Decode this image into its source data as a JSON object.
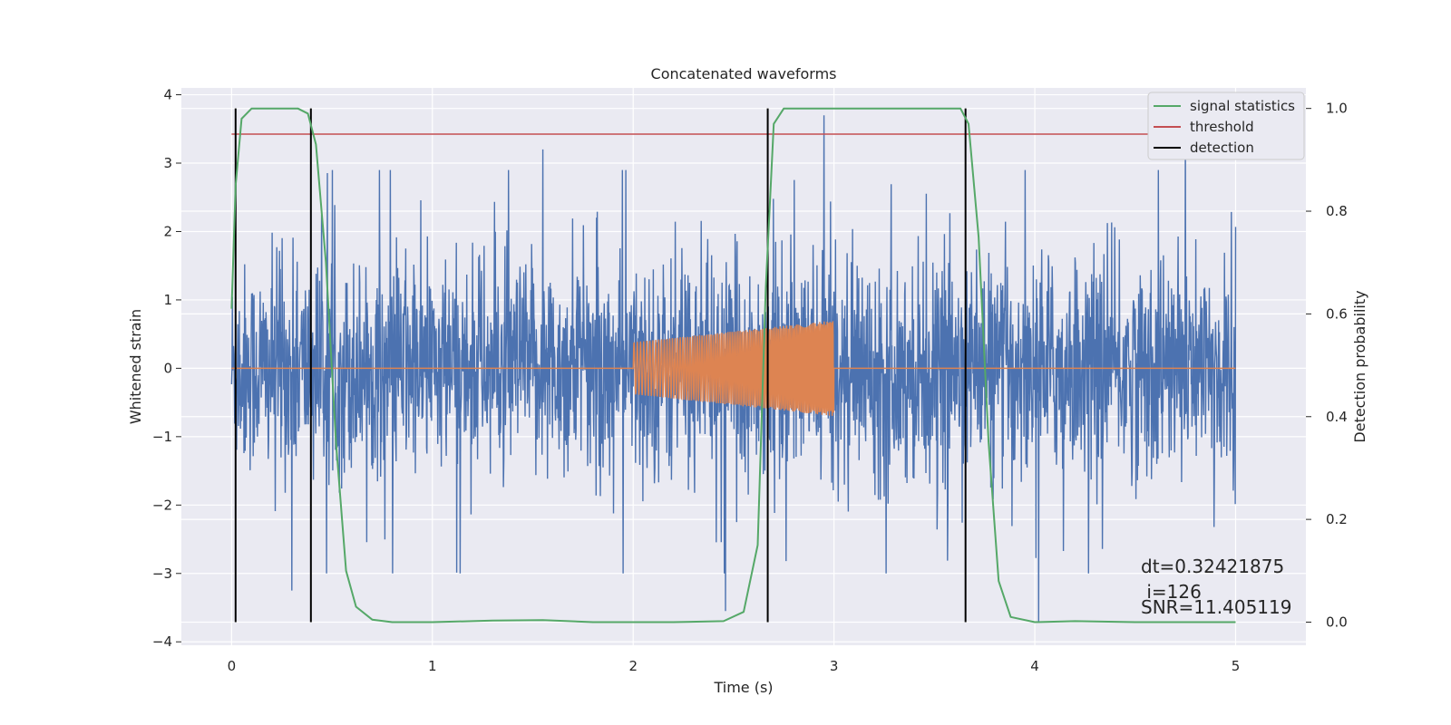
{
  "chart_data": {
    "type": "line",
    "title": "Concatenated waveforms",
    "xlabel": "Time (s)",
    "ylabel": "Whitened strain",
    "y2label": "Detection probability",
    "xlim": [
      -0.25,
      5.35
    ],
    "ylim": [
      -4.05,
      4.1
    ],
    "y2lim": [
      -0.045,
      1.04
    ],
    "x_ticks": [
      0,
      1,
      2,
      3,
      4,
      5
    ],
    "y_ticks": [
      -4,
      -3,
      -2,
      -1,
      0,
      1,
      2,
      3,
      4
    ],
    "y2_ticks": [
      0.0,
      0.2,
      0.4,
      0.6,
      0.8,
      1.0
    ],
    "x_tick_labels": [
      "0",
      "1",
      "2",
      "3",
      "4",
      "5"
    ],
    "y_tick_labels": [
      "−4",
      "−3",
      "−2",
      "−1",
      "0",
      "1",
      "2",
      "3",
      "4"
    ],
    "y2_tick_labels": [
      "0.0",
      "0.2",
      "0.4",
      "0.6",
      "0.8",
      "1.0"
    ],
    "grid": true,
    "legend_position": "top-right",
    "colors": {
      "strain": "#4c72b0",
      "injection": "#dd8452",
      "signal_statistics": "#55a868",
      "threshold": "#c44e52",
      "detection": "#000000",
      "background": "#eaeaf2",
      "grid": "#ffffff"
    },
    "series": [
      {
        "name": "",
        "axis": "left",
        "style": "noise",
        "x_range": [
          0,
          5
        ],
        "amplitude_rms": 0.75,
        "extremes": [
          {
            "x": 2.46,
            "y": -3.55
          },
          {
            "x": 2.95,
            "y": 3.7
          },
          {
            "x": 4.02,
            "y": -3.7
          },
          {
            "x": 4.75,
            "y": 3.5
          },
          {
            "x": 1.55,
            "y": 3.2
          },
          {
            "x": 0.3,
            "y": -3.25
          }
        ]
      },
      {
        "name": "",
        "axis": "left",
        "style": "chirp",
        "x_range": [
          0,
          5
        ],
        "burst_start": 2.0,
        "burst_end": 3.0,
        "amplitude_start": 0.38,
        "amplitude_end": 0.7
      },
      {
        "name": "signal statistics",
        "axis": "right",
        "x": [
          0.0,
          0.02,
          0.05,
          0.1,
          0.33,
          0.38,
          0.42,
          0.47,
          0.52,
          0.57,
          0.62,
          0.7,
          0.8,
          1.0,
          1.3,
          1.55,
          1.8,
          2.2,
          2.45,
          2.55,
          2.62,
          2.66,
          2.7,
          2.75,
          3.0,
          3.63,
          3.67,
          3.72,
          3.77,
          3.82,
          3.88,
          4.0,
          4.2,
          4.5,
          5.0
        ],
        "y": [
          0.61,
          0.85,
          0.98,
          1.0,
          1.0,
          0.99,
          0.93,
          0.7,
          0.35,
          0.1,
          0.03,
          0.005,
          0.0,
          0.0,
          0.003,
          0.004,
          0.0,
          0.0,
          0.002,
          0.02,
          0.15,
          0.65,
          0.97,
          1.0,
          1.0,
          1.0,
          0.97,
          0.75,
          0.35,
          0.08,
          0.01,
          0.0,
          0.002,
          0.0,
          0.0
        ]
      },
      {
        "name": "threshold",
        "axis": "right",
        "x": [
          0,
          5
        ],
        "y": [
          0.95,
          0.95
        ]
      },
      {
        "name": "detection",
        "axis": "right",
        "x_values": [
          0.02,
          0.395,
          2.67,
          3.655
        ],
        "y_range": [
          0,
          1
        ]
      }
    ],
    "annotations": {
      "dt": "dt=0.32421875",
      "i": " i=126",
      "snr": "SNR=11.405119"
    }
  }
}
